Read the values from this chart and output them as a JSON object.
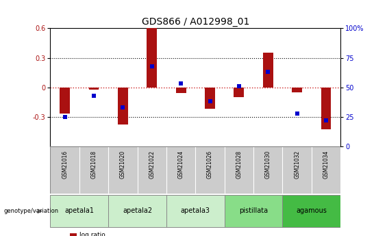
{
  "title": "GDS866 / A012998_01",
  "samples": [
    "GSM21016",
    "GSM21018",
    "GSM21020",
    "GSM21022",
    "GSM21024",
    "GSM21026",
    "GSM21028",
    "GSM21030",
    "GSM21032",
    "GSM21034"
  ],
  "log_ratio": [
    -0.27,
    -0.02,
    -0.38,
    0.6,
    -0.06,
    -0.22,
    -0.1,
    0.35,
    -0.05,
    -0.43
  ],
  "percentile_rank": [
    25,
    43,
    33,
    68,
    53,
    38,
    51,
    63,
    28,
    22
  ],
  "groups": [
    {
      "name": "apetala1",
      "indices": [
        0,
        1
      ],
      "color": "#ccf0cc"
    },
    {
      "name": "apetala2",
      "indices": [
        2,
        3
      ],
      "color": "#ccf0cc"
    },
    {
      "name": "apetala3",
      "indices": [
        4,
        5
      ],
      "color": "#ccf0cc"
    },
    {
      "name": "pistillata",
      "indices": [
        6,
        7
      ],
      "color": "#77dd77"
    },
    {
      "name": "agamous",
      "indices": [
        8,
        9
      ],
      "color": "#44cc44"
    }
  ],
  "ylim": [
    -0.6,
    0.6
  ],
  "yticks_left": [
    -0.3,
    0.0,
    0.3,
    0.6
  ],
  "yticks_left_labels": [
    "-0.3",
    "0",
    "0.3",
    "0.6"
  ],
  "y2ticks": [
    0,
    25,
    50,
    75,
    100
  ],
  "bar_color": "#aa1111",
  "dot_color": "#0000cc",
  "zero_line_color": "#cc2222",
  "grid_color": "#000000",
  "title_fontsize": 10,
  "tick_fontsize": 7,
  "sample_bg_color": "#cccccc",
  "bar_width": 0.35,
  "dot_size": 18
}
